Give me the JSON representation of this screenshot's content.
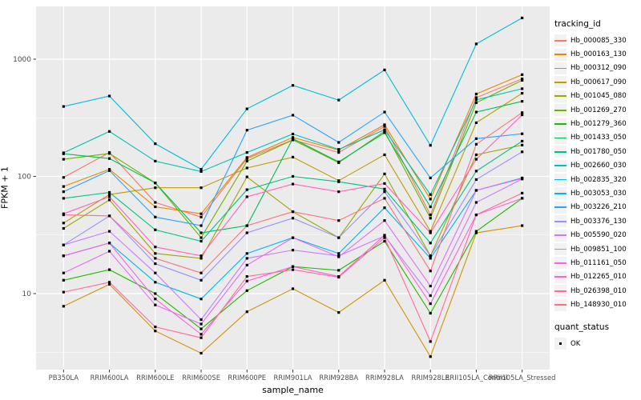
{
  "figure": {
    "y_axis_title": "FPKM + 1",
    "x_axis_title": "sample_name",
    "legend_tracking_title": "tracking_id",
    "legend_quant_title": "quant_status",
    "legend_quant_ok_label": "OK"
  },
  "style": {
    "panel_bg": "#EBEBEB",
    "grid_color": "#FFFFFF",
    "tick_label_color": "#4D4D4D",
    "tick_mark_color": "#333333",
    "marker_color": "#000000",
    "legend_key_bg": "#F2F2F2"
  },
  "chart_data": {
    "type": "line",
    "title": "",
    "xlabel": "sample_name",
    "ylabel": "FPKM + 1",
    "y_scale": "log10",
    "y_ticks": [
      10,
      100,
      1000
    ],
    "y_minor_ticks": [
      3.162,
      31.62,
      316.2
    ],
    "ylim": [
      2.2,
      2900
    ],
    "grid": true,
    "legend_position": "right",
    "marker": "black-square",
    "marker_meaning": "quant_status OK",
    "categories": [
      "PB350LA",
      "RRIM600LA",
      "RRIM600LE",
      "RRIM600SE",
      "RRIM600PE",
      "RRIM901LA",
      "RRIM928BA",
      "RRIM928LA",
      "RRIM928LE",
      "RRII105LA_Control",
      "RRII105LA_Stressed"
    ],
    "series": [
      {
        "name": "Hb_000085_330",
        "color": "#F8766D",
        "values": [
          98,
          160,
          60,
          45,
          142,
          205,
          160,
          267,
          47,
          470,
          680
        ]
      },
      {
        "name": "Hb_000163_130",
        "color": "#E58700",
        "values": [
          82,
          115,
          55,
          48,
          145,
          215,
          168,
          276,
          64,
          505,
          738
        ]
      },
      {
        "name": "Hb_000312_090",
        "color": "#D39200",
        "values": [
          7.8,
          12,
          4.8,
          3.1,
          7,
          11,
          6.9,
          13,
          2.9,
          33,
          38
        ]
      },
      {
        "name": "Hb_000617_090",
        "color": "#BC9D00",
        "values": [
          40,
          70,
          80,
          80,
          118,
          146,
          92,
          153,
          34,
          287,
          512
        ]
      },
      {
        "name": "Hb_001045_080",
        "color": "#9CA700",
        "values": [
          36,
          63,
          22,
          20,
          99,
          50,
          30,
          105,
          21,
          153,
          185
        ]
      },
      {
        "name": "Hb_001269_270",
        "color": "#6FB000",
        "values": [
          140,
          157,
          88,
          30,
          135,
          205,
          131,
          243,
          44,
          425,
          660
        ]
      },
      {
        "name": "Hb_001279_360",
        "color": "#24B700",
        "values": [
          13,
          16,
          10,
          5,
          10.6,
          17,
          15.8,
          28,
          6.8,
          34,
          65
        ]
      },
      {
        "name": "Hb_001433_050",
        "color": "#00BC59",
        "values": [
          156,
          142,
          88,
          33,
          38,
          210,
          133,
          236,
          55,
          354,
          437
        ]
      },
      {
        "name": "Hb_001780_050",
        "color": "#00C08A",
        "values": [
          65,
          73,
          35,
          28,
          77,
          100,
          90,
          78,
          27,
          111,
          200
        ]
      },
      {
        "name": "Hb_002660_030",
        "color": "#00C0B2",
        "values": [
          159,
          242,
          135,
          110,
          160,
          230,
          170,
          250,
          70,
          450,
          560
        ]
      },
      {
        "name": "Hb_002835_320",
        "color": "#00BCD8",
        "values": [
          395,
          485,
          190,
          115,
          377,
          598,
          448,
          810,
          184,
          1350,
          2250
        ]
      },
      {
        "name": "Hb_003053_030",
        "color": "#00B3F2",
        "values": [
          21,
          27,
          12.5,
          9,
          22,
          30,
          22,
          54,
          20,
          76,
          97
        ]
      },
      {
        "name": "Hb_003226_210",
        "color": "#29A3FF",
        "values": [
          74,
          112,
          45,
          38,
          248,
          333,
          195,
          354,
          97,
          210,
          231
        ]
      },
      {
        "name": "Hb_003376_130",
        "color": "#9590FF",
        "values": [
          26,
          46,
          18,
          13,
          33,
          44,
          30,
          74,
          21,
          94,
          162
        ]
      },
      {
        "name": "Hb_005590_020",
        "color": "#C77CFF",
        "values": [
          26,
          34,
          15,
          6,
          20,
          23.5,
          21,
          31,
          9.6,
          60,
          95
        ]
      },
      {
        "name": "Hb_009851_100",
        "color": "#E76BF3",
        "values": [
          15,
          23,
          8,
          5.5,
          17.5,
          30,
          20.6,
          42,
          11.6,
          76,
          96
        ]
      },
      {
        "name": "Hb_011161_050",
        "color": "#FA62DB",
        "values": [
          21,
          27,
          9,
          4.5,
          12.8,
          17,
          14,
          31.5,
          8.2,
          47,
          65
        ]
      },
      {
        "name": "Hb_012265_010",
        "color": "#FF62BF",
        "values": [
          48,
          67,
          25,
          21,
          67,
          86,
          74,
          87,
          33,
          140,
          335
        ]
      },
      {
        "name": "Hb_026398_010",
        "color": "#FF6A9A",
        "values": [
          10.3,
          12.5,
          5.2,
          4.2,
          14,
          16,
          13.8,
          30,
          3.9,
          47,
          72
        ]
      },
      {
        "name": "Hb_148930_010",
        "color": "#FC717F",
        "values": [
          47,
          46,
          20,
          15,
          38,
          50,
          42,
          65,
          15.6,
          188,
          350
        ]
      }
    ]
  }
}
